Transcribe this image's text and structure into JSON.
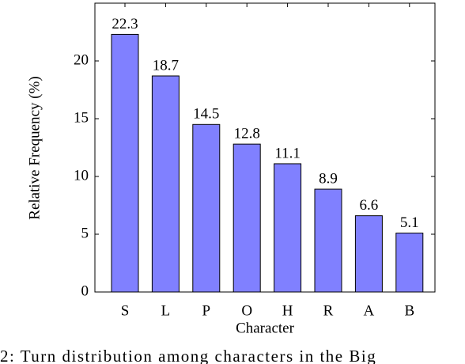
{
  "chart_data": {
    "type": "bar",
    "x_label": "Character",
    "y_label": "Relative Frequency (%)",
    "categories": [
      "S",
      "L",
      "P",
      "O",
      "H",
      "R",
      "A",
      "B"
    ],
    "values": [
      22.3,
      18.7,
      14.5,
      12.8,
      11.1,
      8.9,
      6.6,
      5.1
    ],
    "color": "#8080ff",
    "ylim": [
      0,
      25
    ],
    "yticks": [
      0,
      5,
      10,
      15,
      20
    ],
    "data_labels": true,
    "caption": "2: Turn distribution among characters in the Big"
  }
}
